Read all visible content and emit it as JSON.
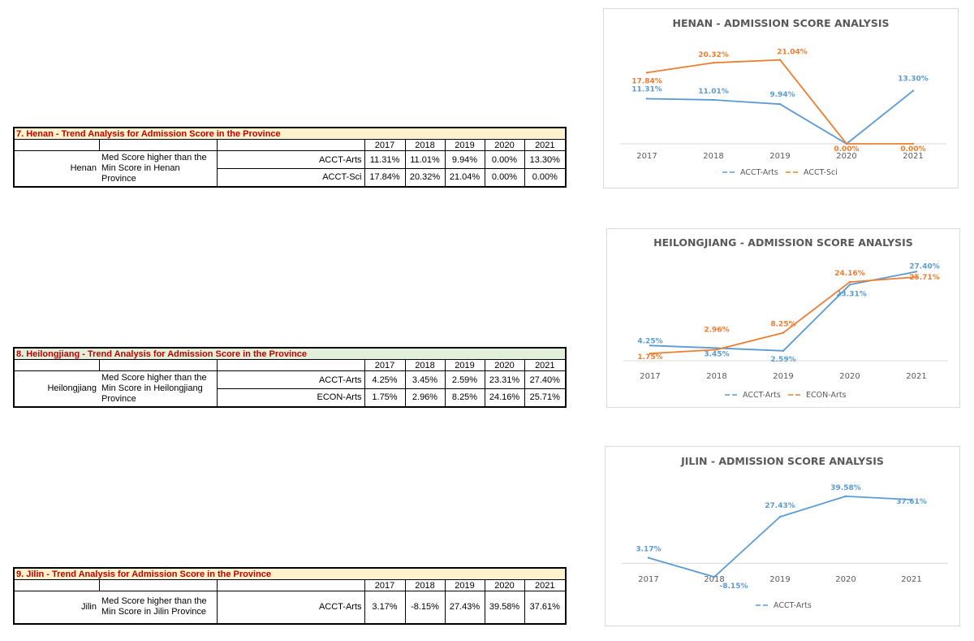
{
  "tables": [
    {
      "title": "7. Henan - Trend Analysis for Admission Score in the Province",
      "title_bg": "#fff2cc",
      "years": [
        "2017",
        "2018",
        "2019",
        "2020",
        "2021"
      ],
      "province": "Henan",
      "description": "Med Score higher than the Min Score in Henan Province",
      "rows": [
        {
          "label": "ACCT-Arts",
          "values": [
            "11.31%",
            "11.01%",
            "9.94%",
            "0.00%",
            "13.30%"
          ]
        },
        {
          "label": "ACCT-Sci",
          "values": [
            "17.84%",
            "20.32%",
            "21.04%",
            "0.00%",
            "0.00%"
          ]
        }
      ]
    },
    {
      "title": "8. Heilongjiang - Trend Analysis for Admission Score in the Province",
      "title_bg": "#e2efda",
      "years": [
        "2017",
        "2018",
        "2019",
        "2020",
        "2021"
      ],
      "province": "Heilongjiang",
      "description": "Med Score higher than the Min Score in Heilongjiang Province",
      "rows": [
        {
          "label": "ACCT-Arts",
          "values": [
            "4.25%",
            "3.45%",
            "2.59%",
            "23.31%",
            "27.40%"
          ]
        },
        {
          "label": "ECON-Arts",
          "values": [
            "1.75%",
            "2.96%",
            "8.25%",
            "24.16%",
            "25.71%"
          ]
        }
      ]
    },
    {
      "title": "9. Jilin - Trend Analysis for Admission Score in the Province",
      "title_bg": "#fff2cc",
      "years": [
        "2017",
        "2018",
        "2019",
        "2020",
        "2021"
      ],
      "province": "Jilin",
      "description": "Med Score higher than the Min Score in Jilin Province",
      "rows": [
        {
          "label": "ACCT-Arts",
          "values": [
            "3.17%",
            "-8.15%",
            "27.43%",
            "39.58%",
            "37.61%"
          ]
        }
      ]
    }
  ],
  "chart_data": [
    {
      "type": "line",
      "title": "HENAN - ADMISSION SCORE ANALYSIS",
      "categories": [
        "2017",
        "2018",
        "2019",
        "2020",
        "2021"
      ],
      "series": [
        {
          "name": "ACCT-Arts",
          "values": [
            11.31,
            11.01,
            9.94,
            0.0,
            13.3
          ],
          "labels": [
            "11.31%",
            "11.01%",
            "9.94%",
            "",
            "13.30%"
          ],
          "color": "#5b9bd5"
        },
        {
          "name": "ACCT-Sci",
          "values": [
            17.84,
            20.32,
            21.04,
            0.0,
            0.0
          ],
          "labels": [
            "17.84%",
            "20.32%",
            "21.04%",
            "0.00%",
            "0.00%"
          ],
          "color": "#ed7d31"
        }
      ],
      "ylim": [
        0,
        22
      ],
      "legend": "bottom"
    },
    {
      "type": "line",
      "title": "HEILONGJIANG - ADMISSION SCORE ANALYSIS",
      "categories": [
        "2017",
        "2018",
        "2019",
        "2020",
        "2021"
      ],
      "series": [
        {
          "name": "ACCT-Arts",
          "values": [
            4.25,
            3.45,
            2.59,
            23.31,
            27.4
          ],
          "labels": [
            "4.25%",
            "3.45%",
            "2.59%",
            "23.31%",
            "27.40%"
          ],
          "color": "#5b9bd5"
        },
        {
          "name": "ECON-Arts",
          "values": [
            1.75,
            2.96,
            8.25,
            24.16,
            25.71
          ],
          "labels": [
            "1.75%",
            "2.96%",
            "8.25%",
            "24.16%",
            "25.71%"
          ],
          "color": "#ed7d31"
        }
      ],
      "ylim": [
        0,
        28
      ],
      "legend": "bottom"
    },
    {
      "type": "line",
      "title": "JILIN - ADMISSION SCORE ANALYSIS",
      "categories": [
        "2017",
        "2018",
        "2019",
        "2020",
        "2021"
      ],
      "series": [
        {
          "name": "ACCT-Arts",
          "values": [
            3.17,
            -8.15,
            27.43,
            39.58,
            37.61
          ],
          "labels": [
            "3.17%",
            "-8.15%",
            "27.43%",
            "39.58%",
            "37.61%"
          ],
          "color": "#5b9bd5"
        }
      ],
      "ylim": [
        -10,
        40
      ],
      "legend": "bottom"
    }
  ]
}
